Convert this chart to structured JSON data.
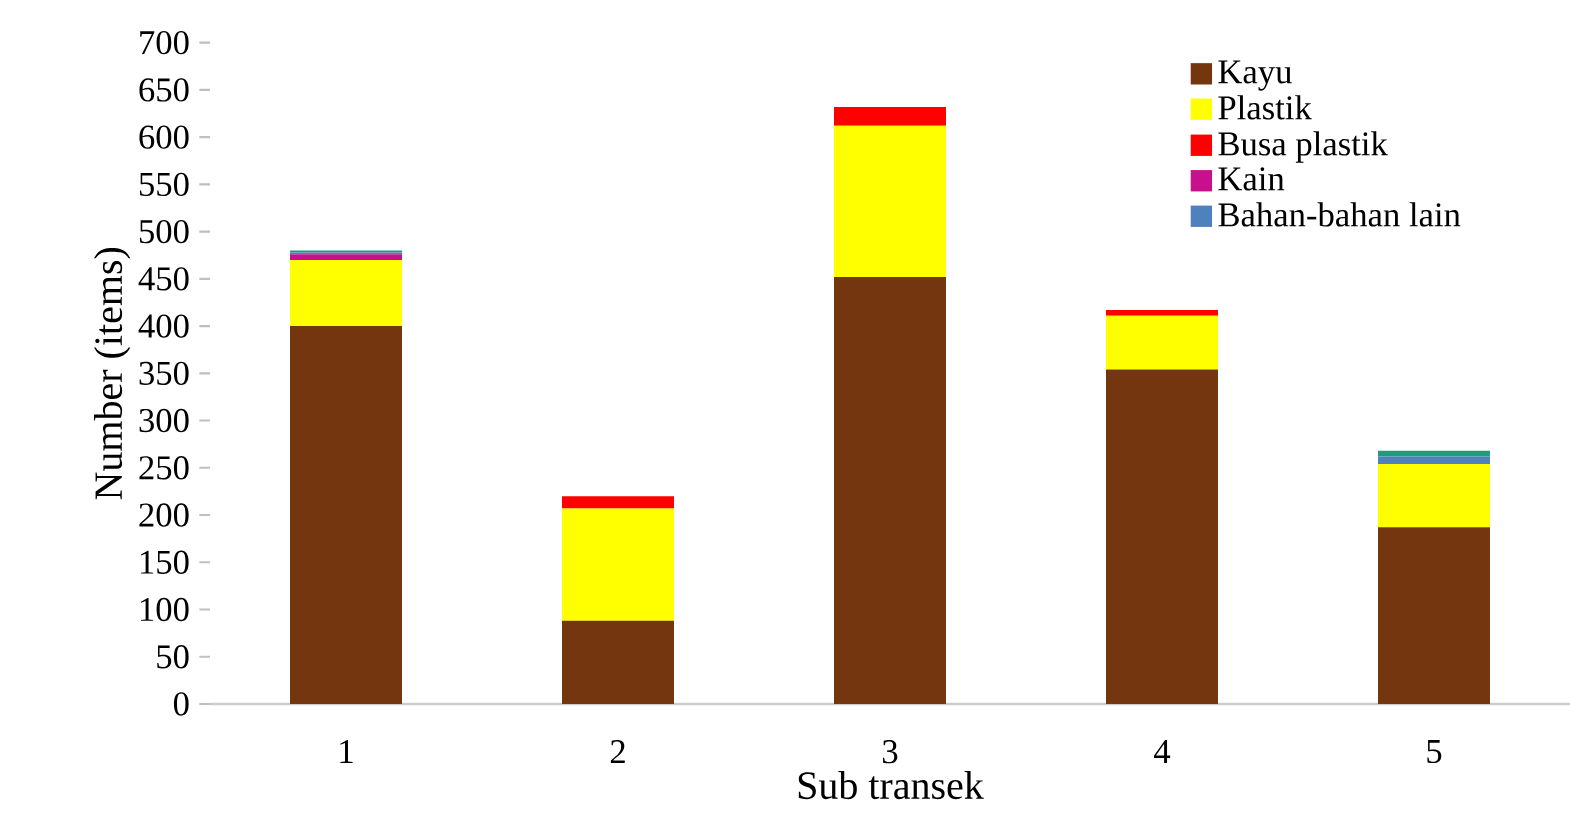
{
  "chart_data": {
    "type": "bar",
    "stacked": true,
    "xlabel": "Sub transek",
    "ylabel": "Number (items)",
    "categories": [
      "1",
      "2",
      "3",
      "4",
      "5"
    ],
    "series": [
      {
        "name": "Kayu",
        "color": "#74360f",
        "values": [
          400,
          88,
          452,
          354,
          187
        ]
      },
      {
        "name": "Plastik",
        "color": "#ffff00",
        "values": [
          70,
          119,
          160,
          57,
          67
        ]
      },
      {
        "name": "Busa plastik",
        "color": "#ff0000",
        "values": [
          0,
          13,
          20,
          6,
          0
        ]
      },
      {
        "name": "Kain",
        "color": "#c8108c",
        "values": [
          6,
          0,
          0,
          0,
          0
        ]
      },
      {
        "name": "Bahan-bahan lain",
        "color": "#4f81bd",
        "values": [
          2,
          0,
          0,
          0,
          8
        ]
      },
      {
        "color": "#1aa079",
        "values": [
          2,
          0,
          0,
          0,
          6
        ]
      }
    ],
    "ylim": [
      0,
      700
    ],
    "yticks": [
      0,
      50,
      100,
      150,
      200,
      250,
      300,
      350,
      400,
      450,
      500,
      550,
      600,
      650,
      700
    ],
    "grid": false,
    "legend": "top right"
  }
}
